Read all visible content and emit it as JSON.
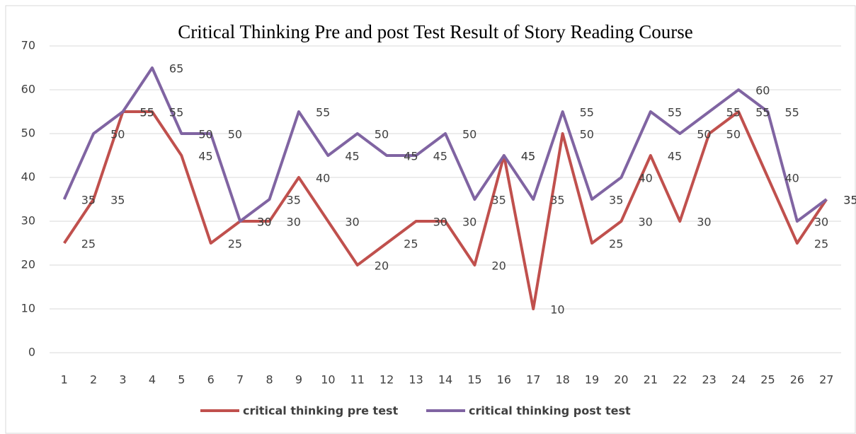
{
  "chart_data": {
    "type": "line",
    "title": "Critical Thinking Pre and post Test Result of Story Reading Course",
    "categories": [
      1,
      2,
      3,
      4,
      5,
      6,
      7,
      8,
      9,
      10,
      11,
      12,
      13,
      14,
      15,
      16,
      17,
      18,
      19,
      20,
      21,
      22,
      23,
      24,
      25,
      26,
      27
    ],
    "series": [
      {
        "name": "critical thinking  pre test",
        "color": "#c0504d",
        "values": [
          25,
          35,
          55,
          55,
          45,
          25,
          30,
          30,
          40,
          30,
          20,
          25,
          30,
          30,
          20,
          45,
          10,
          50,
          25,
          30,
          45,
          30,
          50,
          55,
          40,
          25,
          35
        ]
      },
      {
        "name": "critical thinking  post test",
        "color": "#8064a2",
        "values": [
          35,
          50,
          55,
          65,
          50,
          50,
          30,
          35,
          55,
          45,
          50,
          45,
          45,
          50,
          35,
          45,
          35,
          55,
          35,
          40,
          55,
          50,
          55,
          60,
          55,
          30,
          35
        ]
      }
    ],
    "ylim": [
      0,
      70
    ],
    "yticks": [
      0,
      10,
      20,
      30,
      40,
      50,
      60,
      70
    ],
    "grid": true,
    "legend": "bottom"
  }
}
